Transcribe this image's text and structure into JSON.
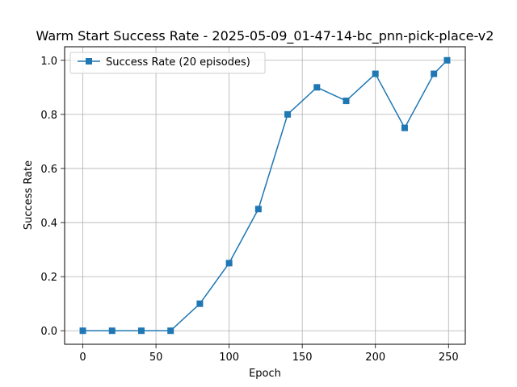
{
  "chart_data": {
    "type": "line",
    "title": "Warm Start Success Rate - 2025-05-09_01-47-14-bc_pnn-pick-place-v2",
    "xlabel": "Epoch",
    "ylabel": "Success Rate",
    "xlim": [
      -12.45,
      261.45
    ],
    "ylim": [
      -0.05,
      1.05
    ],
    "xticks": [
      0,
      50,
      100,
      150,
      200,
      250
    ],
    "yticks": [
      0.0,
      0.2,
      0.4,
      0.6,
      0.8,
      1.0
    ],
    "xtick_labels": [
      "0",
      "50",
      "100",
      "150",
      "200",
      "250"
    ],
    "ytick_labels": [
      "0.0",
      "0.2",
      "0.4",
      "0.6",
      "0.8",
      "1.0"
    ],
    "grid": true,
    "legend_position": "top-left",
    "series": [
      {
        "name": "Success Rate (20 episodes)",
        "color": "#1f77b4",
        "marker": "square",
        "x": [
          0,
          20,
          40,
          60,
          80,
          100,
          120,
          140,
          160,
          180,
          200,
          220,
          240,
          249
        ],
        "y": [
          0.0,
          0.0,
          0.0,
          0.0,
          0.1,
          0.25,
          0.45,
          0.8,
          0.9,
          0.85,
          0.95,
          0.75,
          0.95,
          1.0
        ]
      }
    ]
  }
}
